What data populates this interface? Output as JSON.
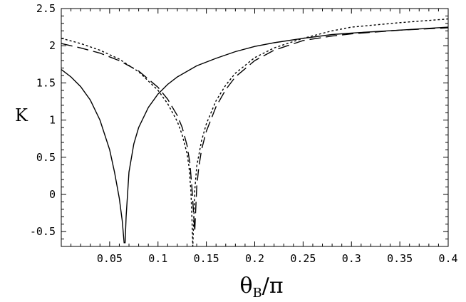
{
  "chart_data": {
    "type": "line",
    "xlabel": "θB/π",
    "xlabel_main": "θ",
    "xlabel_sub": "B",
    "xlabel_rest": "/π",
    "ylabel": "K",
    "xlim": [
      0,
      0.4
    ],
    "ylim": [
      -0.7,
      2.5
    ],
    "grid": false,
    "xticks": [
      0.05,
      0.1,
      0.15,
      0.2,
      0.25,
      0.3,
      0.35,
      0.4
    ],
    "xtick_labels": [
      "0.05",
      "0.1",
      "0.15",
      "0.2",
      "0.25",
      "0.3",
      "0.35",
      "0.4"
    ],
    "yticks": [
      -0.5,
      0,
      0.5,
      1,
      1.5,
      2,
      2.5
    ],
    "ytick_labels": [
      "-0.5",
      "0",
      "0.5",
      "1",
      "1.5",
      "2",
      "2.5"
    ],
    "series": [
      {
        "style": "solid",
        "x": [
          0.0,
          0.01,
          0.02,
          0.03,
          0.04,
          0.05,
          0.055,
          0.06,
          0.063,
          0.065,
          0.066,
          0.067,
          0.07,
          0.075,
          0.08,
          0.09,
          0.1,
          0.11,
          0.12,
          0.14,
          0.16,
          0.18,
          0.2,
          0.22,
          0.25,
          0.28,
          0.3,
          0.35,
          0.4
        ],
        "y": [
          1.68,
          1.58,
          1.45,
          1.27,
          1.0,
          0.6,
          0.3,
          -0.05,
          -0.35,
          -0.65,
          -0.65,
          -0.3,
          0.3,
          0.68,
          0.9,
          1.17,
          1.35,
          1.48,
          1.58,
          1.73,
          1.83,
          1.92,
          1.99,
          2.04,
          2.1,
          2.15,
          2.17,
          2.21,
          2.25
        ]
      },
      {
        "style": "dotted",
        "x": [
          0.0,
          0.02,
          0.04,
          0.06,
          0.08,
          0.1,
          0.11,
          0.12,
          0.125,
          0.13,
          0.132,
          0.134,
          0.135,
          0.136,
          0.138,
          0.14,
          0.145,
          0.15,
          0.16,
          0.17,
          0.18,
          0.2,
          0.22,
          0.25,
          0.28,
          0.3,
          0.35,
          0.4
        ],
        "y": [
          2.1,
          2.03,
          1.94,
          1.82,
          1.65,
          1.4,
          1.22,
          0.98,
          0.8,
          0.55,
          0.38,
          0.05,
          -0.3,
          -0.7,
          0.05,
          0.38,
          0.72,
          0.95,
          1.26,
          1.47,
          1.63,
          1.84,
          1.97,
          2.1,
          2.2,
          2.25,
          2.31,
          2.36
        ]
      },
      {
        "style": "dashed",
        "x": [
          0.0,
          0.02,
          0.04,
          0.06,
          0.08,
          0.1,
          0.11,
          0.12,
          0.125,
          0.13,
          0.133,
          0.135,
          0.137,
          0.138,
          0.14,
          0.142,
          0.145,
          0.15,
          0.16,
          0.17,
          0.18,
          0.2,
          0.22,
          0.25,
          0.28,
          0.3,
          0.35,
          0.4
        ],
        "y": [
          2.03,
          1.97,
          1.9,
          1.8,
          1.66,
          1.44,
          1.28,
          1.06,
          0.9,
          0.66,
          0.42,
          0.1,
          -0.3,
          -0.5,
          0.1,
          0.35,
          0.6,
          0.85,
          1.18,
          1.41,
          1.58,
          1.8,
          1.94,
          2.07,
          2.13,
          2.16,
          2.21,
          2.24
        ]
      }
    ]
  }
}
